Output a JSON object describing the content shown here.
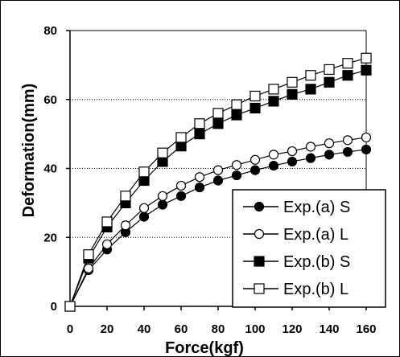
{
  "chart_data": {
    "type": "line",
    "xlabel": "Force(kgf)",
    "ylabel": "Deformation(mm)",
    "xlim": [
      0,
      160
    ],
    "ylim": [
      0,
      80
    ],
    "x_ticks": [
      "0",
      "20",
      "40",
      "60",
      "80",
      "100",
      "120",
      "140",
      "160"
    ],
    "y_ticks": [
      "0",
      "20",
      "40",
      "60",
      "80"
    ],
    "grid": "horizontal dotted at 20, 40, 60",
    "legend_position": "bottom-right",
    "x": [
      0,
      10,
      20,
      30,
      40,
      50,
      60,
      70,
      80,
      90,
      100,
      110,
      120,
      130,
      140,
      150,
      160
    ],
    "series": [
      {
        "name": "Exp.(a) S",
        "marker": "filled-circle",
        "values": [
          0,
          10.5,
          16.5,
          21.5,
          26,
          29.5,
          32,
          34.5,
          36.5,
          38,
          39.5,
          40.8,
          42,
          43,
          44,
          44.8,
          45.5
        ]
      },
      {
        "name": "Exp.(a) L",
        "marker": "open-circle",
        "values": [
          0,
          11,
          18,
          23.5,
          28.5,
          32,
          35,
          37.5,
          39.5,
          41,
          42.5,
          44,
          45,
          46.3,
          47.3,
          48.2,
          49
        ]
      },
      {
        "name": "Exp.(b) S",
        "marker": "filled-square",
        "values": [
          0,
          14,
          23,
          30,
          36.5,
          42,
          46.5,
          50,
          53,
          55.5,
          57.5,
          59.5,
          61.5,
          63,
          65,
          67,
          68.5
        ]
      },
      {
        "name": "Exp.(b) L",
        "marker": "open-square",
        "values": [
          0,
          15,
          24.5,
          32,
          39,
          44.5,
          49,
          53,
          56,
          58.5,
          61,
          63,
          65,
          67,
          68.7,
          70.5,
          72
        ]
      }
    ],
    "colors": {
      "line": "#000000",
      "background": "#ffffff"
    }
  }
}
